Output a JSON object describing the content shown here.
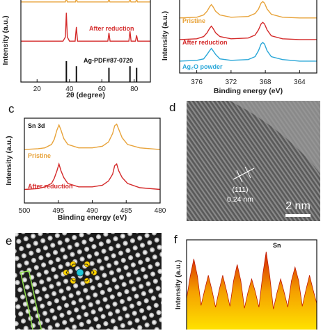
{
  "chart_data": [
    {
      "type": "line",
      "xlabel": "2θ (degree)",
      "ylabel": "Intensity (a.u.)",
      "xlim": [
        10,
        90
      ],
      "ylim": [
        0,
        10
      ],
      "xticks": [
        20,
        40,
        60,
        80
      ],
      "series": [
        {
          "color": "#e8a33a",
          "x": [
            10,
            37.5,
            38.1,
            38.7,
            43.7,
            44.3,
            44.9,
            63.8,
            64.4,
            65,
            76.8,
            77.4,
            78,
            80.9,
            81.5,
            82.1,
            90
          ],
          "values": [
            9.6,
            9.6,
            10,
            9.6,
            9.6,
            10,
            9.6,
            9.6,
            9.9,
            9.6,
            9.6,
            9.9,
            9.6,
            9.6,
            9.9,
            9.6,
            9.6
          ]
        },
        {
          "name": "After reduction",
          "color": "#d42a2a",
          "x": [
            10,
            36,
            37.5,
            38.1,
            38.7,
            40,
            43.5,
            44.3,
            45,
            63.7,
            64.4,
            65.1,
            76.7,
            77.4,
            78.1,
            80.8,
            81.5,
            82.2,
            90
          ],
          "values": [
            4.9,
            4.9,
            5.4,
            8.3,
            5.4,
            4.9,
            4.9,
            6.6,
            4.9,
            4.9,
            5.9,
            4.9,
            4.9,
            6.1,
            4.9,
            4.9,
            5.6,
            4.9,
            4.9
          ]
        },
        {
          "name": "Ag-PDF#87-0720",
          "color": "#111111",
          "style": "stick",
          "x": [
            38.1,
            44.3,
            64.4,
            77.4,
            81.5
          ],
          "values": [
            2.5,
            1.9,
            1.7,
            1.9,
            1.7
          ]
        }
      ]
    },
    {
      "type": "line",
      "xlabel": "Binding energy (eV)",
      "ylabel": "Intensity (a.u.)",
      "xlim": [
        378,
        362
      ],
      "ylim": [
        0,
        10
      ],
      "xticks": [
        376,
        372,
        368,
        364
      ],
      "series": [
        {
          "name": "Pristine",
          "color": "#e8a33a",
          "x": [
            378,
            376,
            375.2,
            374.8,
            374.5,
            374.3,
            374.1,
            373.8,
            373.3,
            372,
            370,
            369.2,
            368.8,
            368.5,
            368.3,
            368.1,
            367.8,
            367.3,
            366,
            364,
            362
          ],
          "values": [
            7.4,
            7.5,
            7.8,
            8.3,
            8.9,
            9.2,
            8.9,
            8.3,
            7.8,
            7.5,
            7.6,
            8.0,
            8.6,
            9.4,
            9.6,
            9.4,
            8.6,
            7.9,
            7.5,
            7.4,
            7.4
          ]
        },
        {
          "name": "After reduction",
          "color": "#d42a2a",
          "x": [
            378,
            376,
            375.2,
            374.8,
            374.5,
            374.3,
            374.1,
            373.8,
            373.3,
            372,
            370,
            369.2,
            368.8,
            368.5,
            368.3,
            368.1,
            367.8,
            367.3,
            366,
            364,
            362
          ],
          "values": [
            4.5,
            4.6,
            4.9,
            5.4,
            6.0,
            6.3,
            6.0,
            5.4,
            4.9,
            4.6,
            4.7,
            5.1,
            5.8,
            6.6,
            6.8,
            6.6,
            5.8,
            5.0,
            4.6,
            4.5,
            4.5
          ]
        },
        {
          "name": "Ag₂O powder",
          "color": "#2aa7d8",
          "x": [
            378,
            376,
            375.2,
            374.8,
            374.5,
            374.3,
            374.1,
            373.8,
            373.3,
            372,
            370,
            369.2,
            368.8,
            368.5,
            368.3,
            368.1,
            367.8,
            367.3,
            366,
            364,
            362
          ],
          "values": [
            1.6,
            1.7,
            1.9,
            2.5,
            3.0,
            3.3,
            3.0,
            2.5,
            1.9,
            1.7,
            1.8,
            2.2,
            3.0,
            3.9,
            4.1,
            3.9,
            3.0,
            2.2,
            1.8,
            1.6,
            1.6
          ]
        }
      ]
    },
    {
      "type": "line",
      "label": "c",
      "annotation": "Sn 3d",
      "xlabel": "Binding energy (eV)",
      "ylabel": "Intensity (a.u.)",
      "xlim": [
        500,
        480
      ],
      "ylim": [
        0,
        10
      ],
      "xticks": [
        500,
        495,
        490,
        485,
        480
      ],
      "series": [
        {
          "name": "Pristine",
          "color": "#e8a33a",
          "x": [
            500,
            498,
            497,
            496,
            495.6,
            495.2,
            494.9,
            494.6,
            494.2,
            493.6,
            492,
            490,
            488.5,
            487.6,
            487,
            486.7,
            486.4,
            486.1,
            485.6,
            484.8,
            483,
            480
          ],
          "values": [
            6.3,
            6.4,
            6.5,
            6.9,
            7.5,
            8.6,
            9.2,
            8.6,
            7.6,
            6.9,
            6.5,
            6.5,
            6.7,
            7.2,
            8.2,
            9.1,
            9.3,
            8.7,
            7.7,
            6.9,
            6.5,
            6.3
          ]
        },
        {
          "name": "After reduction",
          "color": "#d42a2a",
          "x": [
            500,
            498,
            497,
            496,
            495.6,
            495.2,
            494.9,
            494.6,
            494.2,
            493.6,
            492,
            490,
            488.5,
            487.6,
            487,
            486.7,
            486.4,
            486.1,
            485.6,
            484.8,
            483,
            480
          ],
          "values": [
            1.6,
            1.7,
            1.9,
            2.3,
            2.9,
            3.8,
            4.6,
            3.8,
            3.0,
            2.3,
            1.9,
            1.9,
            2.1,
            2.6,
            3.4,
            4.4,
            4.6,
            3.8,
            3.0,
            2.3,
            1.8,
            1.6
          ]
        }
      ]
    },
    {
      "type": "area",
      "label": "f",
      "annotation": "Sn",
      "ylabel": "Intensity (a.u.)",
      "ylim": [
        0,
        10
      ],
      "values": [
        3.5,
        6.0,
        7.9,
        6.0,
        2.8,
        4.5,
        6.1,
        4.5,
        2.6,
        4.5,
        6.1,
        4.5,
        2.7,
        5.5,
        7.3,
        5.5,
        2.5,
        4.3,
        5.7,
        4.3,
        2.6,
        6.0,
        8.7,
        6.0,
        2.4,
        4.2,
        5.7,
        4.2,
        2.6,
        5.5,
        7.0,
        5.5,
        2.7,
        4.5,
        6.1,
        4.5,
        3.0
      ]
    }
  ],
  "images": {
    "d": {
      "label": "d",
      "plane": "(111)",
      "spacing": "0.24 nm",
      "scale": "2 nm"
    },
    "e": {
      "label": "e"
    }
  }
}
